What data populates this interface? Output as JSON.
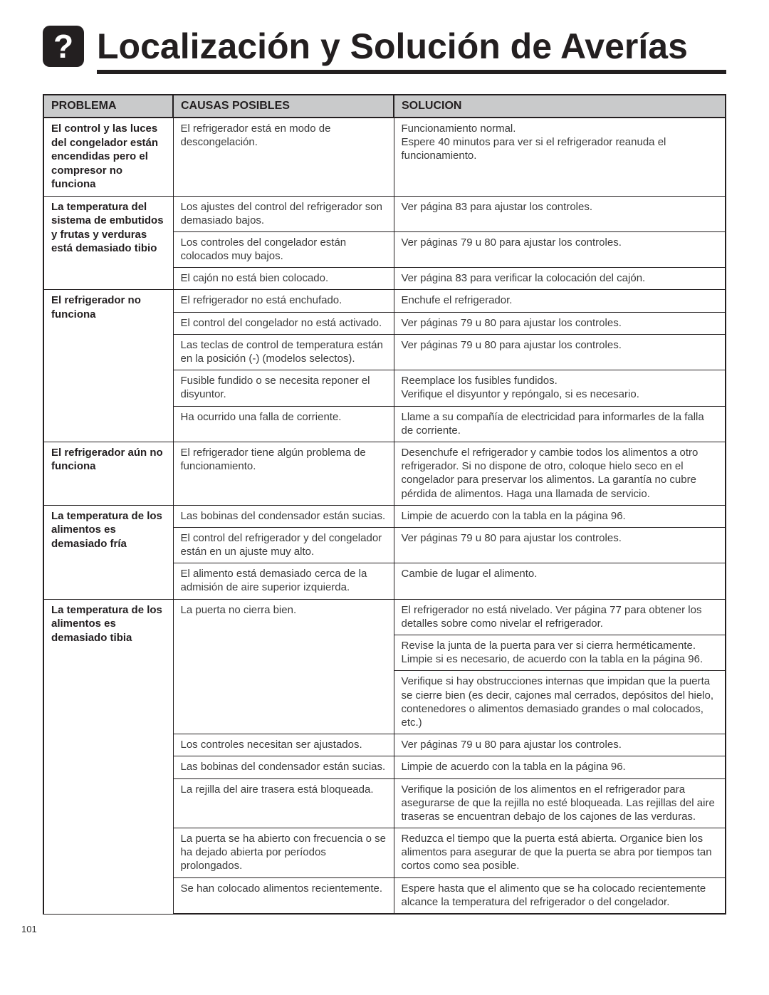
{
  "page_number": "101",
  "title": "Localización y Solución de Averías",
  "icon_glyph": "?",
  "headers": {
    "problema": "PROBLEMA",
    "causas": "CAUSAS POSIBLES",
    "solucion": "SOLUCION"
  },
  "rows": [
    {
      "p": "El control y las luces del congelador están encendidas pero el compresor no funciona",
      "c": "El refrigerador está en modo de descongelación.",
      "s": "Funcionamiento normal.\nEspere 40 minutos para ver si el refrigerador reanuda el funcionamiento.",
      "pspan": 1
    },
    {
      "p": "La temperatura del sistema de embutidos y frutas y verduras está demasiado tibio",
      "c": "Los ajustes del control del refrigerador son demasiado bajos.",
      "s": "Ver página 83 para ajustar los controles.",
      "pspan": 3
    },
    {
      "c": "Los controles del congelador están colocados muy bajos.",
      "s": "Ver páginas 79 u 80 para ajustar los controles."
    },
    {
      "c": "El cajón no está bien colocado.",
      "s": "Ver página 83 para verificar la colocación del cajón."
    },
    {
      "p": "El refrigerador no funciona",
      "c": "El refrigerador no está enchufado.",
      "s": "Enchufe el refrigerador.",
      "pspan": 5
    },
    {
      "c": "El control del congelador no está activado.",
      "s": "Ver páginas 79 u 80 para ajustar los controles."
    },
    {
      "c": "Las teclas de control de temperatura están en la posición (-) (modelos selectos).",
      "s": "Ver páginas 79 u 80 para ajustar los controles."
    },
    {
      "c": "Fusible fundido o se necesita reponer el disyuntor.",
      "s": "Reemplace los fusibles fundidos.\nVerifique el disyuntor y repóngalo, si es necesario."
    },
    {
      "c": "Ha ocurrido una falla de corriente.",
      "s": "Llame a su compañía de electricidad para informarles de la falla de corriente."
    },
    {
      "p": "El refrigerador aún no funciona",
      "c": "El refrigerador tiene algún problema de funcionamiento.",
      "s": "Desenchufe el refrigerador y cambie todos los alimentos a otro refrigerador. Si no dispone de otro, coloque hielo seco en el congelador para preservar los alimentos. La garantía no cubre pérdida de alimentos. Haga una llamada de servicio.",
      "pspan": 1
    },
    {
      "p": "La temperatura de los alimentos es demasiado fría",
      "c": "Las bobinas del condensador están sucias.",
      "s": "Limpie de acuerdo con la tabla en la página 96.",
      "pspan": 3
    },
    {
      "c": "El control del refrigerador y del congelador están en un ajuste muy alto.",
      "s": "Ver páginas 79 u 80 para ajustar los controles."
    },
    {
      "c": "El alimento está demasiado cerca de la admisión de aire superior izquierda.",
      "s": "Cambie de lugar el alimento."
    },
    {
      "p": "La temperatura de los alimentos es demasiado tibia",
      "c": "La puerta no cierra bien.",
      "s": "El refrigerador no está nivelado. Ver página 77 para obtener los detalles sobre como nivelar el refrigerador.",
      "pspan": 8,
      "cspan": 3
    },
    {
      "s": "Revise la junta de la puerta para ver si cierra herméticamente. Limpie si es necesario, de acuerdo con la tabla en la página 96."
    },
    {
      "s": "Verifique si hay obstrucciones internas que impidan que la puerta se cierre bien (es decir, cajones mal cerrados, depósitos del hielo, contenedores o alimentos demasiado grandes o mal colocados, etc.)"
    },
    {
      "c": "Los controles necesitan ser ajustados.",
      "s": "Ver páginas 79 u 80 para ajustar los controles."
    },
    {
      "c": "Las bobinas del condensador están sucias.",
      "s": "Limpie de acuerdo con la tabla en la página 96."
    },
    {
      "c": "La rejilla del aire trasera está bloqueada.",
      "s": "Verifique la posición de los alimentos en el refrigerador para asegurarse de que la rejilla no esté bloqueada. Las rejillas del aire traseras se encuentran debajo de los cajones de las verduras."
    },
    {
      "c": "La puerta se ha abierto con frecuencia o se ha dejado abierta por períodos prolongados.",
      "s": "Reduzca el tiempo que la puerta está abierta. Organice bien los alimentos para asegurar de que la puerta se abra por tiempos tan cortos como sea posible."
    },
    {
      "c": "Se han colocado alimentos recientemente.",
      "s": "Espere hasta que el alimento que se ha colocado recientemente alcance la temperatura del refrigerador o del congelador.",
      "last": true
    }
  ]
}
